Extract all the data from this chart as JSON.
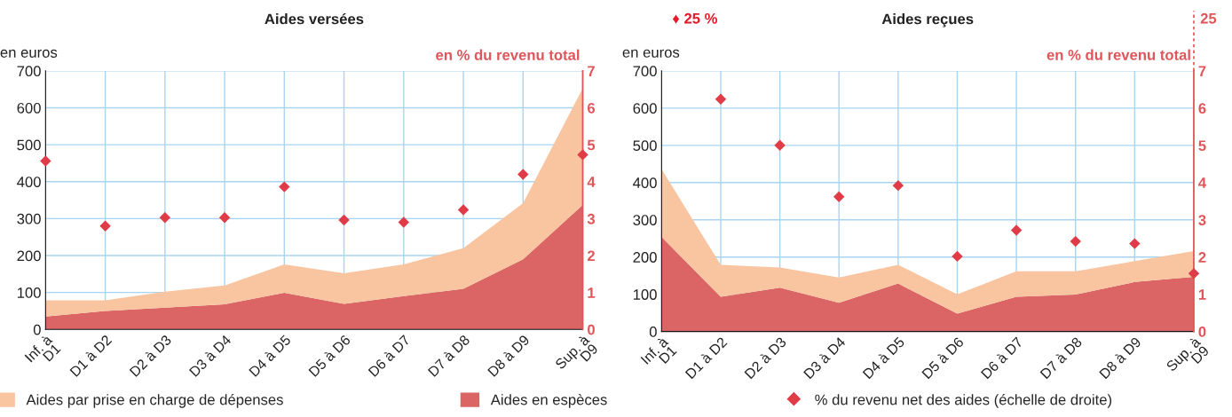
{
  "chart_data": [
    {
      "type": "area",
      "title": "Aides versées",
      "ylabel": "en euros",
      "y2label": "en % du revenu total",
      "categories": [
        "Inf. à\nD1",
        "D1 à D2",
        "D2 à D3",
        "D3 à D4",
        "D4 à D5",
        "D5 à D6",
        "D6 à D7",
        "D7 à D8",
        "D8 à D9",
        "Sup. à\nD9"
      ],
      "stacked": true,
      "grid": true,
      "legend": "bottom",
      "ylim": [
        0,
        700
      ],
      "yticks": [
        0,
        100,
        200,
        300,
        400,
        500,
        600,
        700
      ],
      "y2lim": [
        0,
        7
      ],
      "y2ticks": [
        0,
        1,
        2,
        3,
        4,
        5,
        6,
        7
      ],
      "series": [
        {
          "name": "Aides en espèces",
          "color": "#db6464",
          "values": [
            35,
            50,
            59,
            68,
            99,
            69,
            90,
            110,
            190,
            337
          ]
        },
        {
          "name": "Aides par prise en charge de dépenses",
          "color": "#f9c4a0",
          "values": [
            44,
            29,
            43,
            51,
            77,
            83,
            86,
            110,
            152,
            316
          ]
        },
        {
          "name": "% du revenu net des aides (échelle de droite)",
          "type": "scatter",
          "axis": "y2",
          "marker": "diamond",
          "color": "#e03c48",
          "values": [
            4.56,
            2.8,
            3.03,
            3.03,
            3.86,
            2.96,
            2.9,
            3.24,
            4.2,
            4.73
          ]
        }
      ]
    },
    {
      "type": "area",
      "title": "Aides reçues",
      "ylabel": "en euros",
      "y2label": "en % du revenu total",
      "categories": [
        "Inf. à\nD1",
        "D1 à D2",
        "D2 à D3",
        "D3 à D4",
        "D4 à D5",
        "D5 à D6",
        "D6 à D7",
        "D7 à D8",
        "D8 à D9",
        "Sup. à\nD9"
      ],
      "stacked": true,
      "grid": true,
      "ylim": [
        0,
        700
      ],
      "yticks": [
        0,
        100,
        200,
        300,
        400,
        500,
        600,
        700
      ],
      "y2lim": [
        0,
        7
      ],
      "y2ticks": [
        0,
        1,
        2,
        3,
        4,
        5,
        6,
        7
      ],
      "annotations": [
        "♦ 25 %",
        "25"
      ],
      "series": [
        {
          "color": "#db6464",
          "values": [
            254,
            93,
            118,
            77,
            129,
            48,
            93,
            99,
            133,
            147
          ]
        },
        {
          "color": "#f9c4a0",
          "values": [
            182,
            86,
            54,
            68,
            50,
            52,
            69,
            63,
            56,
            69
          ]
        },
        {
          "type": "scatter",
          "axis": "y2",
          "marker": "diamond",
          "color": "#e03c48",
          "values": [
            null,
            6.24,
            5.0,
            3.62,
            3.92,
            2.02,
            2.72,
            2.42,
            2.36,
            1.56
          ]
        }
      ]
    }
  ]
}
